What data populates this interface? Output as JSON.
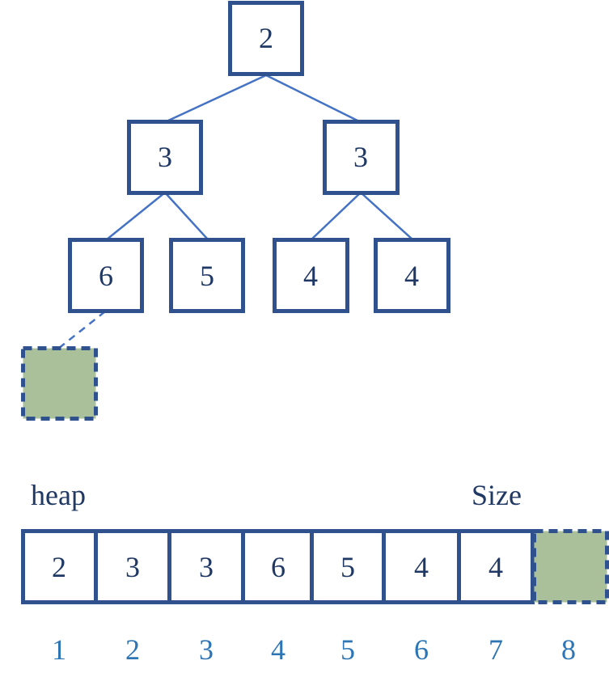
{
  "tree": {
    "nodes": [
      {
        "id": "root",
        "value": "2"
      },
      {
        "id": "left",
        "value": "3"
      },
      {
        "id": "right",
        "value": "3"
      },
      {
        "id": "left-left",
        "value": "6"
      },
      {
        "id": "left-right",
        "value": "5"
      },
      {
        "id": "right-left",
        "value": "4"
      },
      {
        "id": "right-right",
        "value": "4"
      }
    ],
    "new_slot": {
      "parent": "left-left",
      "fill": "#a9c09a"
    }
  },
  "array": {
    "label": "heap",
    "size_label": "Size",
    "values": [
      "2",
      "3",
      "3",
      "6",
      "5",
      "4",
      "4"
    ],
    "indices": [
      "1",
      "2",
      "3",
      "4",
      "5",
      "6",
      "7",
      "8"
    ],
    "new_slot_fill": "#a9c09a"
  },
  "colors": {
    "border": "#2f528f",
    "edge": "#4472c4",
    "text": "#203864",
    "index": "#2e75b6",
    "new_slot": "#a9c09a"
  }
}
